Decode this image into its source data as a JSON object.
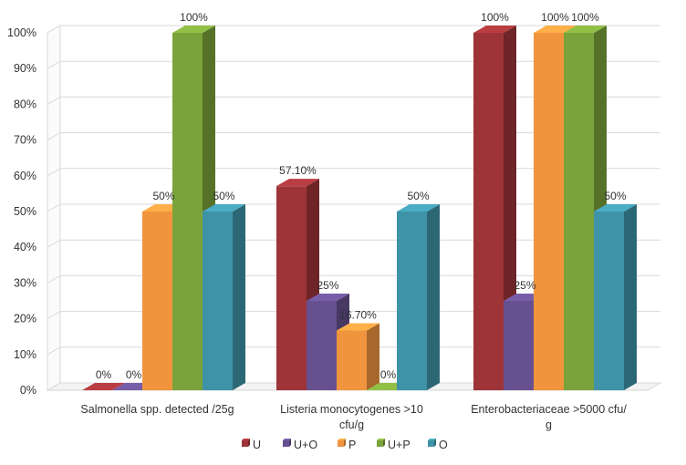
{
  "chart_data": {
    "type": "bar",
    "style": "3d-clustered-column",
    "categories": [
      [
        "Salmonella spp. detected /25g"
      ],
      [
        "Listeria monocytogenes  >10",
        "cfu/g"
      ],
      [
        "Enterobacteriaceae  >5000 cfu/",
        "g"
      ]
    ],
    "series": [
      {
        "name": "U",
        "color": "#9e3438",
        "values": [
          0,
          57.1,
          100
        ],
        "labels": [
          "0%",
          "57.10%",
          "100%"
        ]
      },
      {
        "name": "U+O",
        "color": "#66508f",
        "values": [
          0,
          25,
          25
        ],
        "labels": [
          "0%",
          "25%",
          "25%"
        ]
      },
      {
        "name": "P",
        "color": "#f0953e",
        "values": [
          50,
          16.7,
          100
        ],
        "labels": [
          "50%",
          "16.70%",
          "100%"
        ]
      },
      {
        "name": "U+P",
        "color": "#7ba33b",
        "values": [
          100,
          0,
          100
        ],
        "labels": [
          "100%",
          "0%",
          "100%"
        ]
      },
      {
        "name": "O",
        "color": "#3f93a7",
        "values": [
          50,
          50,
          50
        ],
        "labels": [
          "50%",
          "50%",
          "50%"
        ]
      }
    ],
    "ylim": [
      0,
      100
    ],
    "yticks": [
      "0%",
      "10%",
      "20%",
      "30%",
      "40%",
      "50%",
      "60%",
      "70%",
      "80%",
      "90%",
      "100%"
    ],
    "grid": true,
    "legend_position": "bottom",
    "title": "",
    "xlabel": "",
    "ylabel": ""
  }
}
